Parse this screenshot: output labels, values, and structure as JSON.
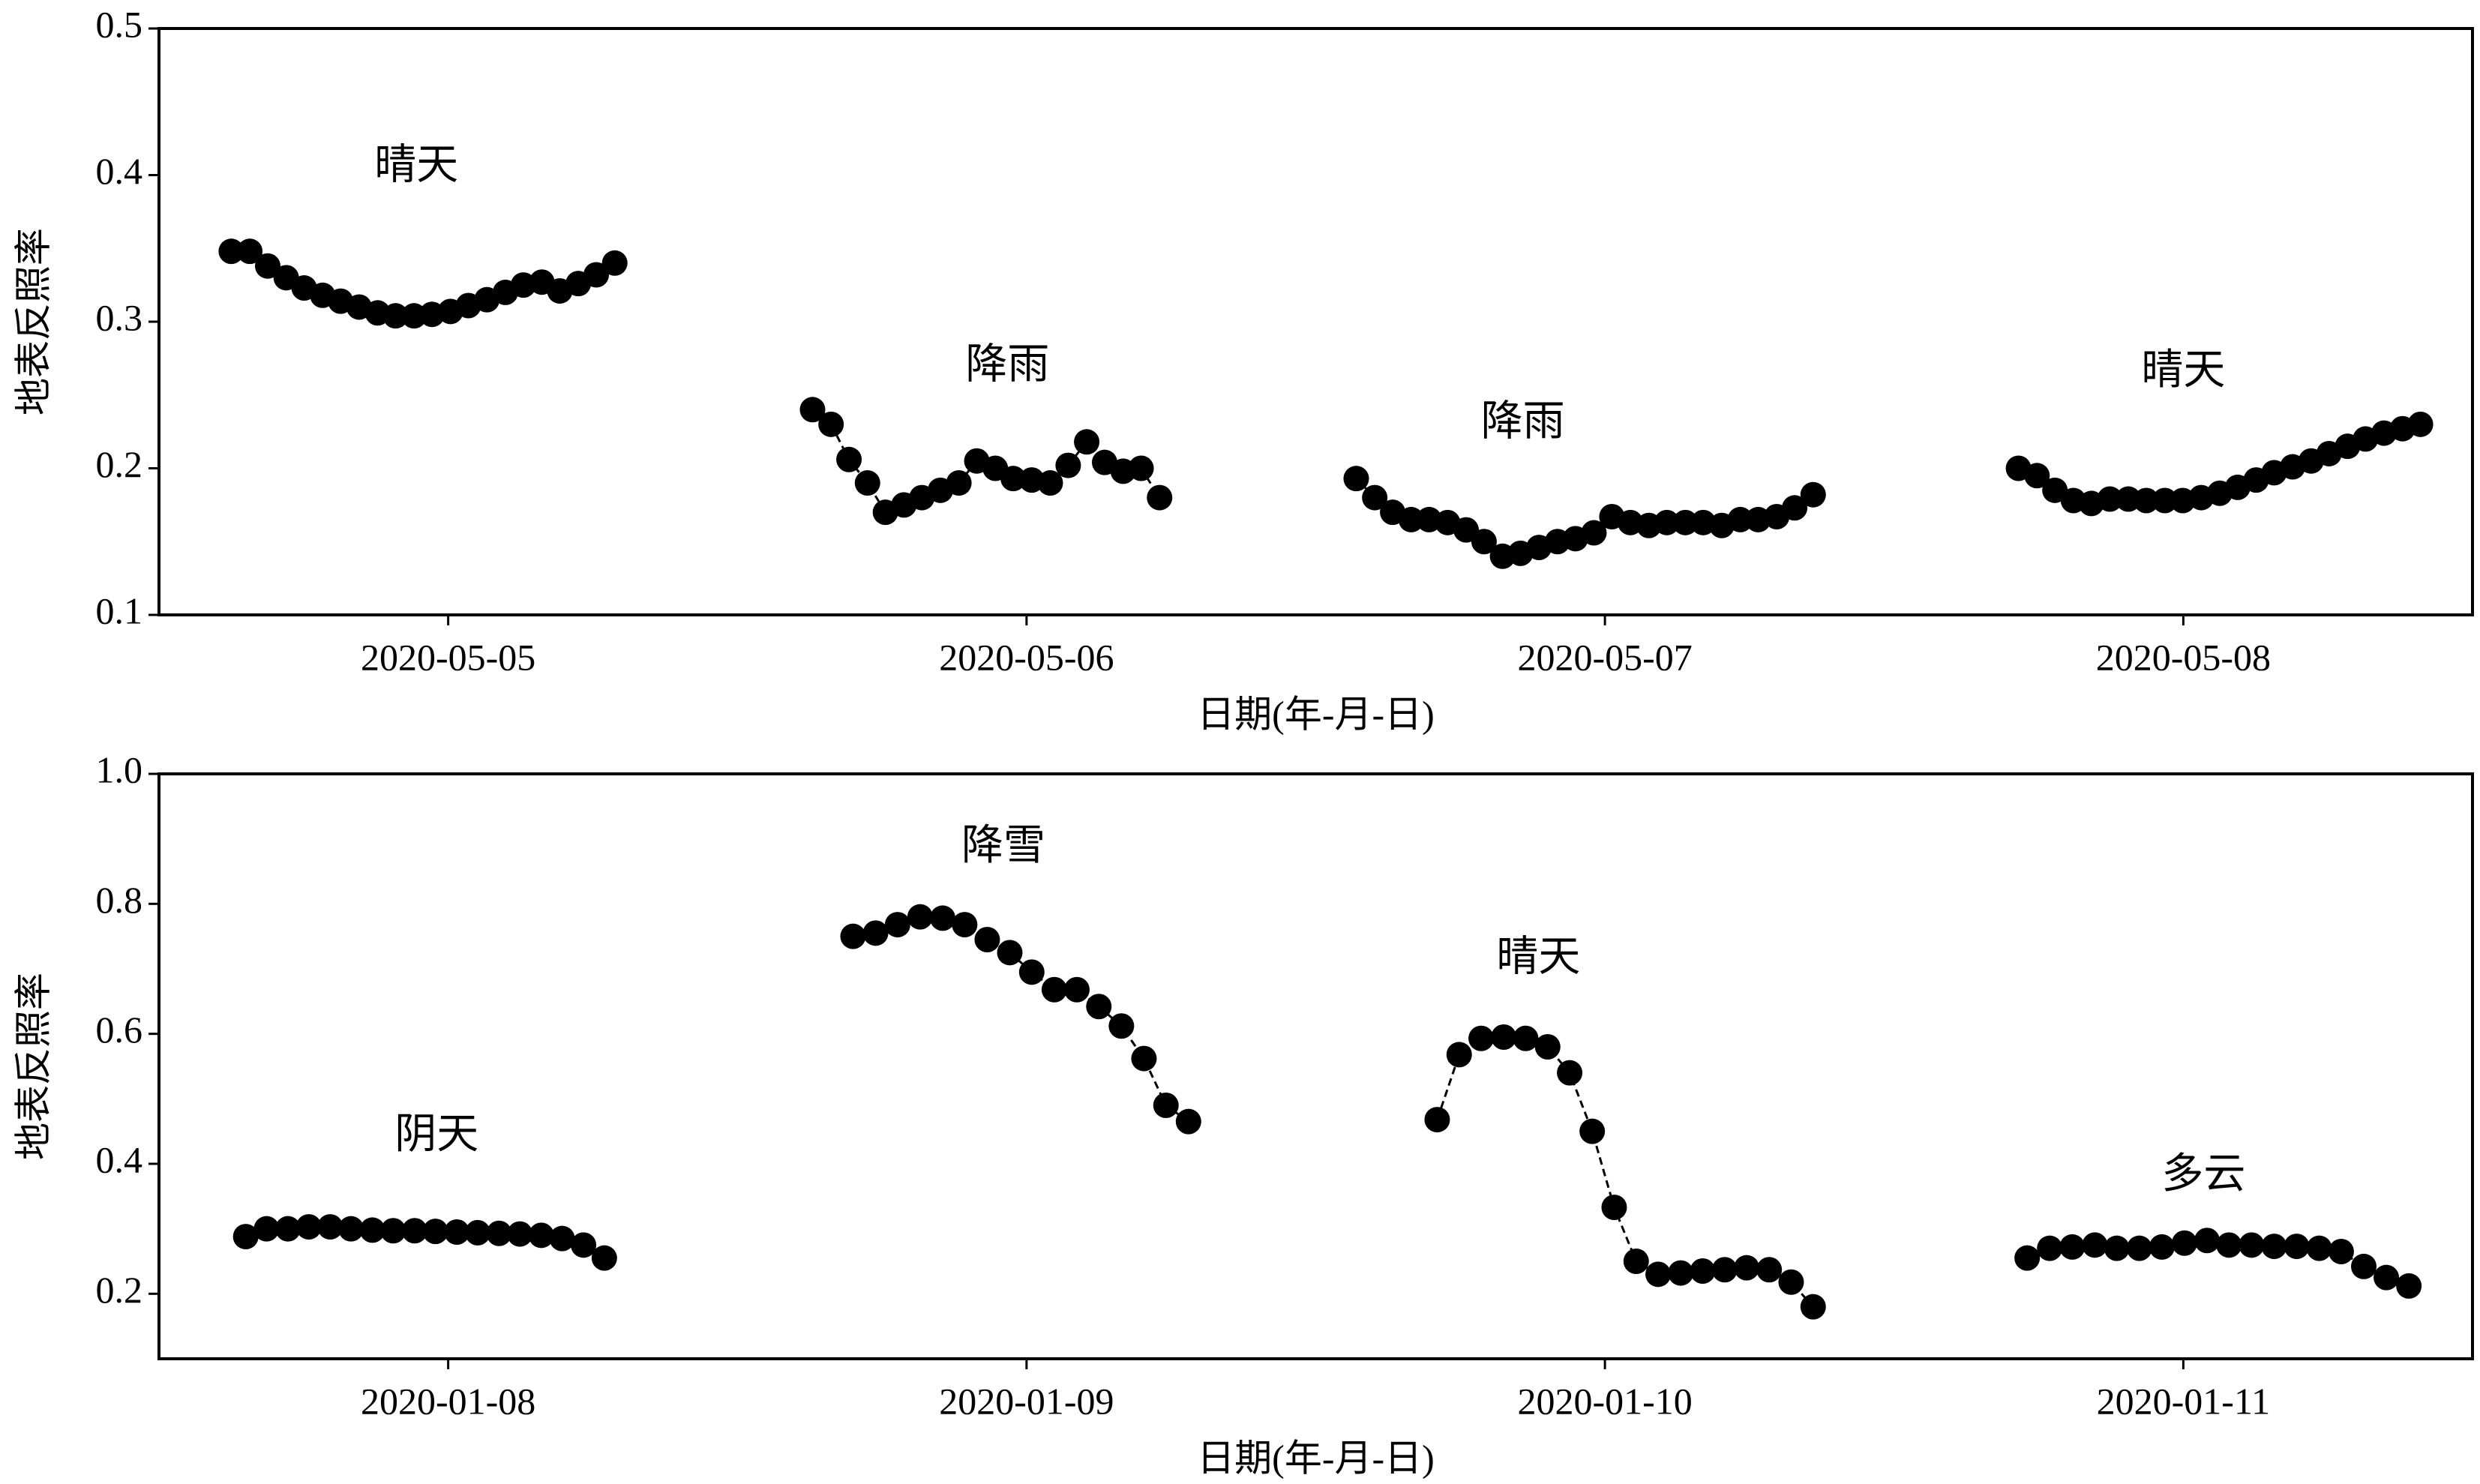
{
  "chart_data": [
    {
      "type": "line",
      "ylabel": "地表反照率",
      "xlabel": "日期(年-月-日)",
      "xlim": [
        -0.5,
        3.5
      ],
      "ylim": [
        0.1,
        0.5
      ],
      "xticks": [
        {
          "value": 0,
          "label": "2020-05-05"
        },
        {
          "value": 1,
          "label": "2020-05-06"
        },
        {
          "value": 2,
          "label": "2020-05-07"
        },
        {
          "value": 3,
          "label": "2020-05-08"
        }
      ],
      "yticks": [
        0.1,
        0.2,
        0.3,
        0.4,
        0.5
      ],
      "color": "#000000",
      "annotations": [
        "晴天",
        "降雨",
        "降雨",
        "晴天"
      ],
      "series": [
        {
          "x": [
            -0.375,
            -0.343,
            -0.312,
            -0.28,
            -0.249,
            -0.217,
            -0.186,
            -0.154,
            -0.122,
            -0.091,
            -0.059,
            -0.028,
            0.004,
            0.035,
            0.067,
            0.099,
            0.13,
            0.162,
            0.193,
            0.225,
            0.256,
            0.288
          ],
          "values": [
            0.348,
            0.348,
            0.338,
            0.33,
            0.323,
            0.318,
            0.314,
            0.31,
            0.306,
            0.304,
            0.304,
            0.305,
            0.307,
            0.311,
            0.315,
            0.32,
            0.325,
            0.327,
            0.321,
            0.326,
            0.332,
            0.34
          ]
        },
        {
          "x": [
            0.63,
            0.662,
            0.693,
            0.725,
            0.756,
            0.788,
            0.819,
            0.851,
            0.883,
            0.914,
            0.946,
            0.977,
            1.009,
            1.041,
            1.072,
            1.104,
            1.135,
            1.167,
            1.198,
            1.23
          ],
          "values": [
            0.24,
            0.23,
            0.206,
            0.19,
            0.17,
            0.175,
            0.18,
            0.185,
            0.19,
            0.205,
            0.2,
            0.193,
            0.192,
            0.19,
            0.202,
            0.218,
            0.204,
            0.198,
            0.2,
            0.18
          ]
        },
        {
          "x": [
            1.57,
            1.602,
            1.633,
            1.665,
            1.696,
            1.728,
            1.76,
            1.791,
            1.823,
            1.854,
            1.886,
            1.918,
            1.949,
            1.981,
            2.012,
            2.044,
            2.076,
            2.107,
            2.139,
            2.17,
            2.202,
            2.234,
            2.265,
            2.297,
            2.328,
            2.36
          ],
          "values": [
            0.193,
            0.18,
            0.17,
            0.165,
            0.165,
            0.163,
            0.158,
            0.15,
            0.14,
            0.142,
            0.146,
            0.15,
            0.152,
            0.156,
            0.167,
            0.163,
            0.161,
            0.163,
            0.163,
            0.163,
            0.161,
            0.165,
            0.165,
            0.167,
            0.173,
            0.182
          ]
        },
        {
          "x": [
            2.715,
            2.747,
            2.778,
            2.81,
            2.841,
            2.873,
            2.905,
            2.936,
            2.968,
            2.999,
            3.031,
            3.063,
            3.094,
            3.126,
            3.157,
            3.189,
            3.221,
            3.252,
            3.284,
            3.315,
            3.347,
            3.379,
            3.41
          ],
          "values": [
            0.2,
            0.195,
            0.185,
            0.178,
            0.176,
            0.179,
            0.179,
            0.178,
            0.178,
            0.178,
            0.18,
            0.183,
            0.187,
            0.192,
            0.197,
            0.201,
            0.205,
            0.21,
            0.215,
            0.22,
            0.224,
            0.227,
            0.23
          ]
        }
      ]
    },
    {
      "type": "line",
      "ylabel": "地表反照率",
      "xlabel": "日期(年-月-日)",
      "xlim": [
        -0.5,
        3.5
      ],
      "ylim": [
        0.1,
        1.0
      ],
      "xticks": [
        {
          "value": 0,
          "label": "2020-01-08"
        },
        {
          "value": 1,
          "label": "2020-01-09"
        },
        {
          "value": 2,
          "label": "2020-01-10"
        },
        {
          "value": 3,
          "label": "2020-01-11"
        }
      ],
      "yticks": [
        0.2,
        0.4,
        0.6,
        0.8,
        {
          "value": 1,
          "label": "1.0"
        }
      ],
      "color": "#000000",
      "annotations": [
        "阴天",
        "降雪",
        "晴天",
        "多云"
      ],
      "series": [
        {
          "x": [
            -0.35,
            -0.314,
            -0.277,
            -0.241,
            -0.204,
            -0.168,
            -0.131,
            -0.095,
            -0.058,
            -0.022,
            0.015,
            0.051,
            0.088,
            0.124,
            0.161,
            0.197,
            0.234,
            0.27
          ],
          "values": [
            0.288,
            0.3,
            0.3,
            0.303,
            0.303,
            0.3,
            0.298,
            0.297,
            0.297,
            0.296,
            0.295,
            0.294,
            0.293,
            0.292,
            0.29,
            0.285,
            0.275,
            0.255
          ]
        },
        {
          "x": [
            0.7,
            0.739,
            0.777,
            0.816,
            0.855,
            0.893,
            0.932,
            0.971,
            1.009,
            1.048,
            1.087,
            1.125,
            1.164,
            1.203,
            1.241,
            1.28
          ],
          "values": [
            0.75,
            0.755,
            0.768,
            0.78,
            0.778,
            0.768,
            0.745,
            0.725,
            0.695,
            0.668,
            0.668,
            0.642,
            0.612,
            0.562,
            0.49,
            0.465
          ]
        },
        {
          "x": [
            1.71,
            1.748,
            1.786,
            1.825,
            1.863,
            1.901,
            1.939,
            1.978,
            2.016,
            2.054,
            2.092,
            2.131,
            2.169,
            2.207,
            2.245,
            2.284,
            2.322,
            2.36
          ],
          "values": [
            0.468,
            0.568,
            0.593,
            0.595,
            0.593,
            0.58,
            0.54,
            0.45,
            0.333,
            0.25,
            0.23,
            0.232,
            0.235,
            0.237,
            0.24,
            0.237,
            0.218,
            0.18
          ]
        },
        {
          "x": [
            2.73,
            2.769,
            2.808,
            2.847,
            2.885,
            2.924,
            2.963,
            3.002,
            3.041,
            3.079,
            3.118,
            3.157,
            3.196,
            3.235,
            3.273,
            3.312,
            3.351,
            3.39
          ],
          "values": [
            0.255,
            0.27,
            0.272,
            0.275,
            0.27,
            0.27,
            0.272,
            0.278,
            0.282,
            0.275,
            0.275,
            0.273,
            0.273,
            0.27,
            0.265,
            0.242,
            0.225,
            0.212
          ]
        }
      ]
    }
  ]
}
